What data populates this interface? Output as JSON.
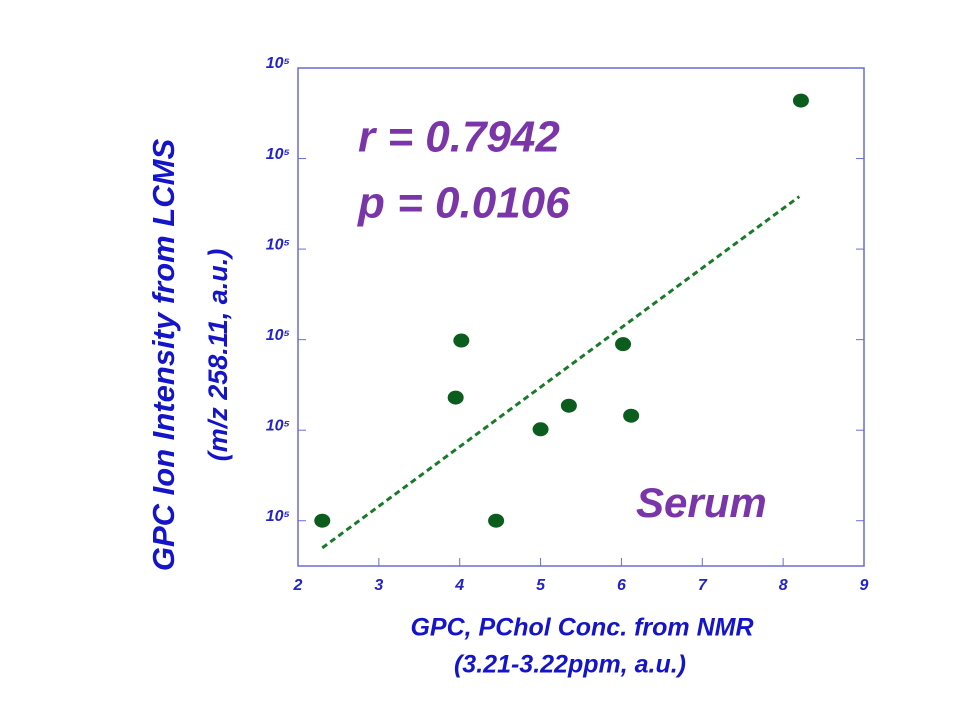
{
  "chart_data": {
    "type": "scatter",
    "xlabel": [
      "GPC, PChol Conc. from NMR",
      "(3.21-3.22ppm, a.u.)"
    ],
    "ylabel": [
      "GPC Ion Intensity from LCMS",
      "(m/z 258.11, a.u.)"
    ],
    "annotations": [
      "r = 0.7942",
      "p = 0.0106",
      "Serum"
    ],
    "x": [
      2.3,
      4.02,
      3.95,
      4.45,
      5.0,
      5.35,
      6.02,
      6.12,
      8.22
    ],
    "y": [
      1.0,
      2.99,
      2.36,
      1.0,
      2.01,
      2.27,
      2.95,
      2.16,
      5.64
    ],
    "color": "#0b5d1e",
    "trend_line": {
      "x": [
        2.3,
        8.2
      ],
      "y": [
        0.7,
        4.58
      ],
      "color": "#1b7a2a"
    },
    "xlim": [
      2,
      9
    ],
    "xticks": [
      2,
      3,
      4,
      5,
      6,
      7,
      8,
      9
    ],
    "ylim": [
      0.5,
      6
    ],
    "yticks": [
      {
        "value": 1,
        "label": "10⁵"
      },
      {
        "value": 2,
        "label": "10⁵"
      },
      {
        "value": 3,
        "label": "10⁵"
      },
      {
        "value": 4,
        "label": "10⁵"
      },
      {
        "value": 5,
        "label": "10⁵"
      },
      {
        "value": 6,
        "label": "10⁵"
      }
    ]
  }
}
